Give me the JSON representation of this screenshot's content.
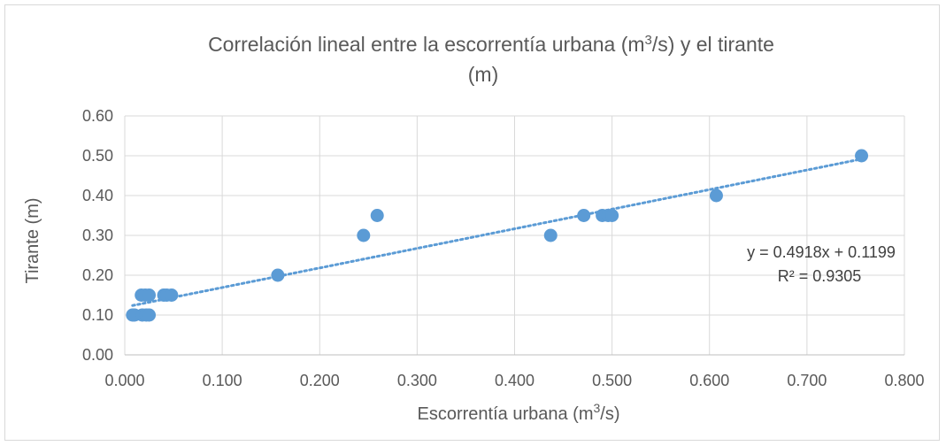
{
  "chart_data": {
    "type": "scatter",
    "title_line1_main": "Correlación lineal entre la escorrentía urbana (m",
    "title_line1_sup": "3",
    "title_line1_end": "/s) y el tirante",
    "title_line2": "(m)",
    "xlabel_main": "Escorrentía urbana (m",
    "xlabel_sup": "3",
    "xlabel_end": "/s)",
    "ylabel": "Tirante (m)",
    "xlim": [
      0,
      0.8
    ],
    "ylim": [
      0,
      0.6
    ],
    "x_ticks": [
      "0.000",
      "0.100",
      "0.200",
      "0.300",
      "0.400",
      "0.500",
      "0.600",
      "0.700",
      "0.800"
    ],
    "y_ticks": [
      "0.00",
      "0.10",
      "0.20",
      "0.30",
      "0.40",
      "0.50",
      "0.60"
    ],
    "grid": true,
    "series": [
      {
        "color": "#5b9bd5",
        "points": [
          {
            "x": 0.008,
            "y": 0.1
          },
          {
            "x": 0.01,
            "y": 0.1
          },
          {
            "x": 0.018,
            "y": 0.1
          },
          {
            "x": 0.022,
            "y": 0.1
          },
          {
            "x": 0.025,
            "y": 0.1
          },
          {
            "x": 0.017,
            "y": 0.15
          },
          {
            "x": 0.021,
            "y": 0.15
          },
          {
            "x": 0.025,
            "y": 0.15
          },
          {
            "x": 0.04,
            "y": 0.15
          },
          {
            "x": 0.043,
            "y": 0.15
          },
          {
            "x": 0.048,
            "y": 0.15
          },
          {
            "x": 0.157,
            "y": 0.2
          },
          {
            "x": 0.245,
            "y": 0.3
          },
          {
            "x": 0.259,
            "y": 0.35
          },
          {
            "x": 0.437,
            "y": 0.3
          },
          {
            "x": 0.471,
            "y": 0.35
          },
          {
            "x": 0.49,
            "y": 0.35
          },
          {
            "x": 0.496,
            "y": 0.35
          },
          {
            "x": 0.5,
            "y": 0.35
          },
          {
            "x": 0.607,
            "y": 0.4
          },
          {
            "x": 0.756,
            "y": 0.5
          }
        ]
      }
    ],
    "trendline": {
      "type": "linear",
      "slope": 0.4918,
      "intercept": 0.1199,
      "x_range": [
        0.008,
        0.756
      ],
      "color": "#5b9bd5",
      "equation": "y = 0.4918x + 0.1199",
      "r_squared": "R² = 0.9305"
    }
  }
}
